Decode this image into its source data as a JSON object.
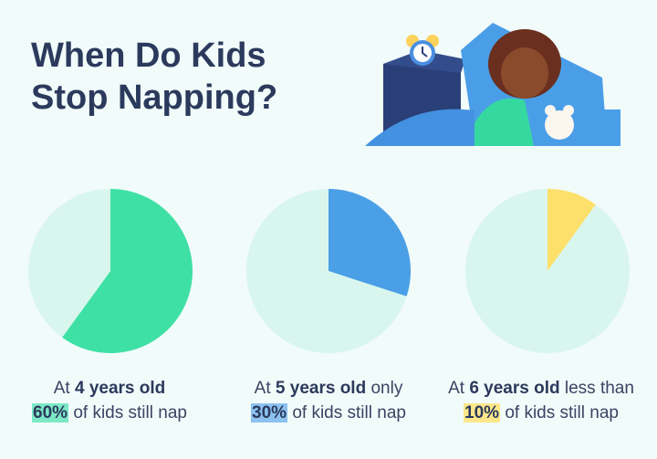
{
  "title_line1": "When Do Kids",
  "title_line2": "Stop Napping?",
  "colors": {
    "background": "#f1fbfa",
    "pie_rest": "#d8f6ee",
    "title": "#2b3a5c"
  },
  "chart_data": [
    {
      "type": "pie",
      "slices": [
        {
          "value": 60,
          "color": "#3fe0a5"
        },
        {
          "value": 40,
          "color": "#d8f6ee"
        }
      ],
      "caption": {
        "pre": "At ",
        "bold": "4 years old",
        "post": "",
        "pct": "60%",
        "rest": " of kids still nap"
      },
      "highlight": "#7de8c6"
    },
    {
      "type": "pie",
      "slices": [
        {
          "value": 30,
          "color": "#4b9fe6"
        },
        {
          "value": 70,
          "color": "#d8f6ee"
        }
      ],
      "caption": {
        "pre": "At ",
        "bold": "5 years old",
        "post": " only",
        "pct": "30%",
        "rest": " of kids still nap"
      },
      "highlight": "#8cc1f0"
    },
    {
      "type": "pie",
      "slices": [
        {
          "value": 10,
          "color": "#fde06b"
        },
        {
          "value": 90,
          "color": "#d8f6ee"
        }
      ],
      "caption": {
        "pre": "At ",
        "bold": "6 years old",
        "post": " less than",
        "pct": "10%",
        "rest": " of kids still nap"
      },
      "highlight": "#fde78a"
    }
  ]
}
